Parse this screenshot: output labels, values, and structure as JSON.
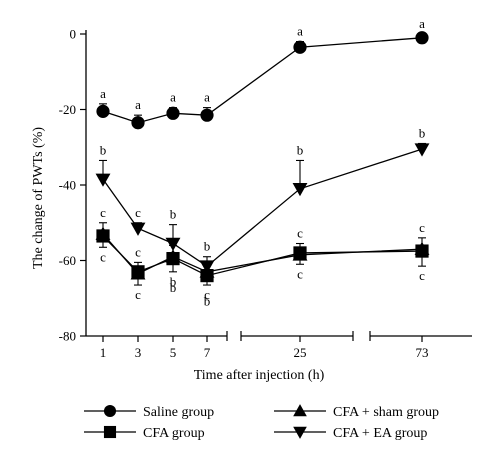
{
  "chart_data": {
    "type": "line",
    "title": "",
    "xlabel": "Time after injection (h)",
    "ylabel": "The change of PWTs (%)",
    "ylim": [
      -80,
      0
    ],
    "yticks": [
      0,
      -20,
      -40,
      -60,
      -80
    ],
    "x": [
      1,
      3,
      5,
      7,
      25,
      73
    ],
    "x_tick_labels": [
      "1",
      "3",
      "5",
      "7",
      "25",
      "73"
    ],
    "x_axis_broken": true,
    "legend_position": "bottom",
    "grid": false,
    "series": [
      {
        "name": "Saline group",
        "marker": "circle",
        "values": [
          -20.5,
          -23.5,
          -21,
          -21.5,
          -3.5,
          -1
        ],
        "errors": [
          2,
          2,
          1.5,
          2,
          1.5,
          1
        ],
        "labels": [
          "a",
          "a",
          "a",
          "a",
          "a",
          "a"
        ]
      },
      {
        "name": "CFA group",
        "marker": "square",
        "values": [
          -53.5,
          -63,
          -59.5,
          -64,
          -58,
          -57.5
        ],
        "errors": [
          3,
          3.5,
          3.5,
          2.5,
          3,
          4
        ],
        "labels": [
          "c",
          "c",
          "b",
          "c",
          "c",
          "c"
        ]
      },
      {
        "name": "CFA + sham group",
        "marker": "triangle-up",
        "values": [
          -53,
          -63.5,
          -59,
          -63,
          -58.5,
          -57
        ],
        "errors": [
          3,
          3,
          3,
          2.5,
          3,
          3
        ],
        "labels": [
          "c",
          "c",
          "b",
          "b",
          "c",
          "c"
        ]
      },
      {
        "name": "CFA + EA group",
        "marker": "triangle-down",
        "values": [
          -38.5,
          -51.5,
          -55.5,
          -61.5,
          -41,
          -30.5
        ],
        "errors": [
          5,
          1.5,
          5,
          2.5,
          7.5,
          1.5
        ],
        "labels": [
          "b",
          "c",
          "b",
          "b",
          "b",
          "b"
        ]
      }
    ]
  }
}
